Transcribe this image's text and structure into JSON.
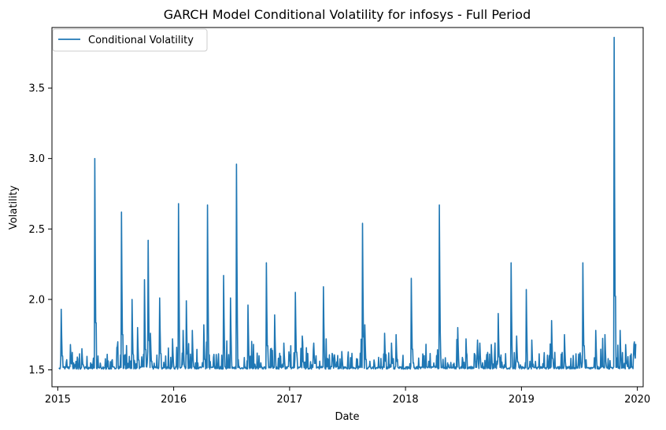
{
  "chart_data": {
    "type": "line",
    "title": "GARCH Model Conditional Volatility for infosys - Full Period",
    "xlabel": "Date",
    "ylabel": "Volatility",
    "x_ticks": [
      "2015",
      "2016",
      "2017",
      "2018",
      "2019",
      "2020"
    ],
    "y_ticks": [
      "1.5",
      "2.0",
      "2.5",
      "3.0",
      "3.5"
    ],
    "xlim": [
      2014.95,
      2020.05
    ],
    "ylim": [
      1.38,
      3.93
    ],
    "grid": false,
    "legend_position": "top-left",
    "baseline": 1.505,
    "series": [
      {
        "name": "Conditional Volatility",
        "color": "#1f77b4",
        "x_start": 2015.01,
        "x_end": 2019.99,
        "spikes": [
          [
            2015.03,
            1.93
          ],
          [
            2015.11,
            1.68
          ],
          [
            2015.21,
            1.65
          ],
          [
            2015.32,
            3.0
          ],
          [
            2015.55,
            2.62
          ],
          [
            2015.64,
            2.0
          ],
          [
            2015.69,
            1.8
          ],
          [
            2015.75,
            2.14
          ],
          [
            2015.78,
            2.42
          ],
          [
            2015.8,
            1.76
          ],
          [
            2015.88,
            2.01
          ],
          [
            2015.99,
            1.72
          ],
          [
            2016.04,
            2.68
          ],
          [
            2016.08,
            1.78
          ],
          [
            2016.11,
            1.99
          ],
          [
            2016.16,
            1.78
          ],
          [
            2016.26,
            1.82
          ],
          [
            2016.29,
            2.67
          ],
          [
            2016.43,
            2.17
          ],
          [
            2016.49,
            2.01
          ],
          [
            2016.54,
            2.96
          ],
          [
            2016.64,
            1.96
          ],
          [
            2016.8,
            2.26
          ],
          [
            2016.87,
            1.89
          ],
          [
            2016.95,
            1.69
          ],
          [
            2017.05,
            2.05
          ],
          [
            2017.11,
            1.74
          ],
          [
            2017.21,
            1.69
          ],
          [
            2017.29,
            2.09
          ],
          [
            2017.45,
            1.63
          ],
          [
            2017.63,
            2.54
          ],
          [
            2017.65,
            1.82
          ],
          [
            2017.82,
            1.76
          ],
          [
            2017.88,
            1.69
          ],
          [
            2017.92,
            1.75
          ],
          [
            2018.05,
            2.15
          ],
          [
            2018.29,
            2.67
          ],
          [
            2018.45,
            1.8
          ],
          [
            2018.52,
            1.72
          ],
          [
            2018.64,
            1.69
          ],
          [
            2018.74,
            1.68
          ],
          [
            2018.8,
            1.9
          ],
          [
            2018.91,
            2.26
          ],
          [
            2018.96,
            1.74
          ],
          [
            2019.04,
            2.07
          ],
          [
            2019.26,
            1.85
          ],
          [
            2019.37,
            1.75
          ],
          [
            2019.53,
            2.26
          ],
          [
            2019.64,
            1.78
          ],
          [
            2019.72,
            1.75
          ],
          [
            2019.8,
            3.86
          ],
          [
            2019.85,
            1.78
          ],
          [
            2019.9,
            1.68
          ]
        ]
      }
    ]
  }
}
